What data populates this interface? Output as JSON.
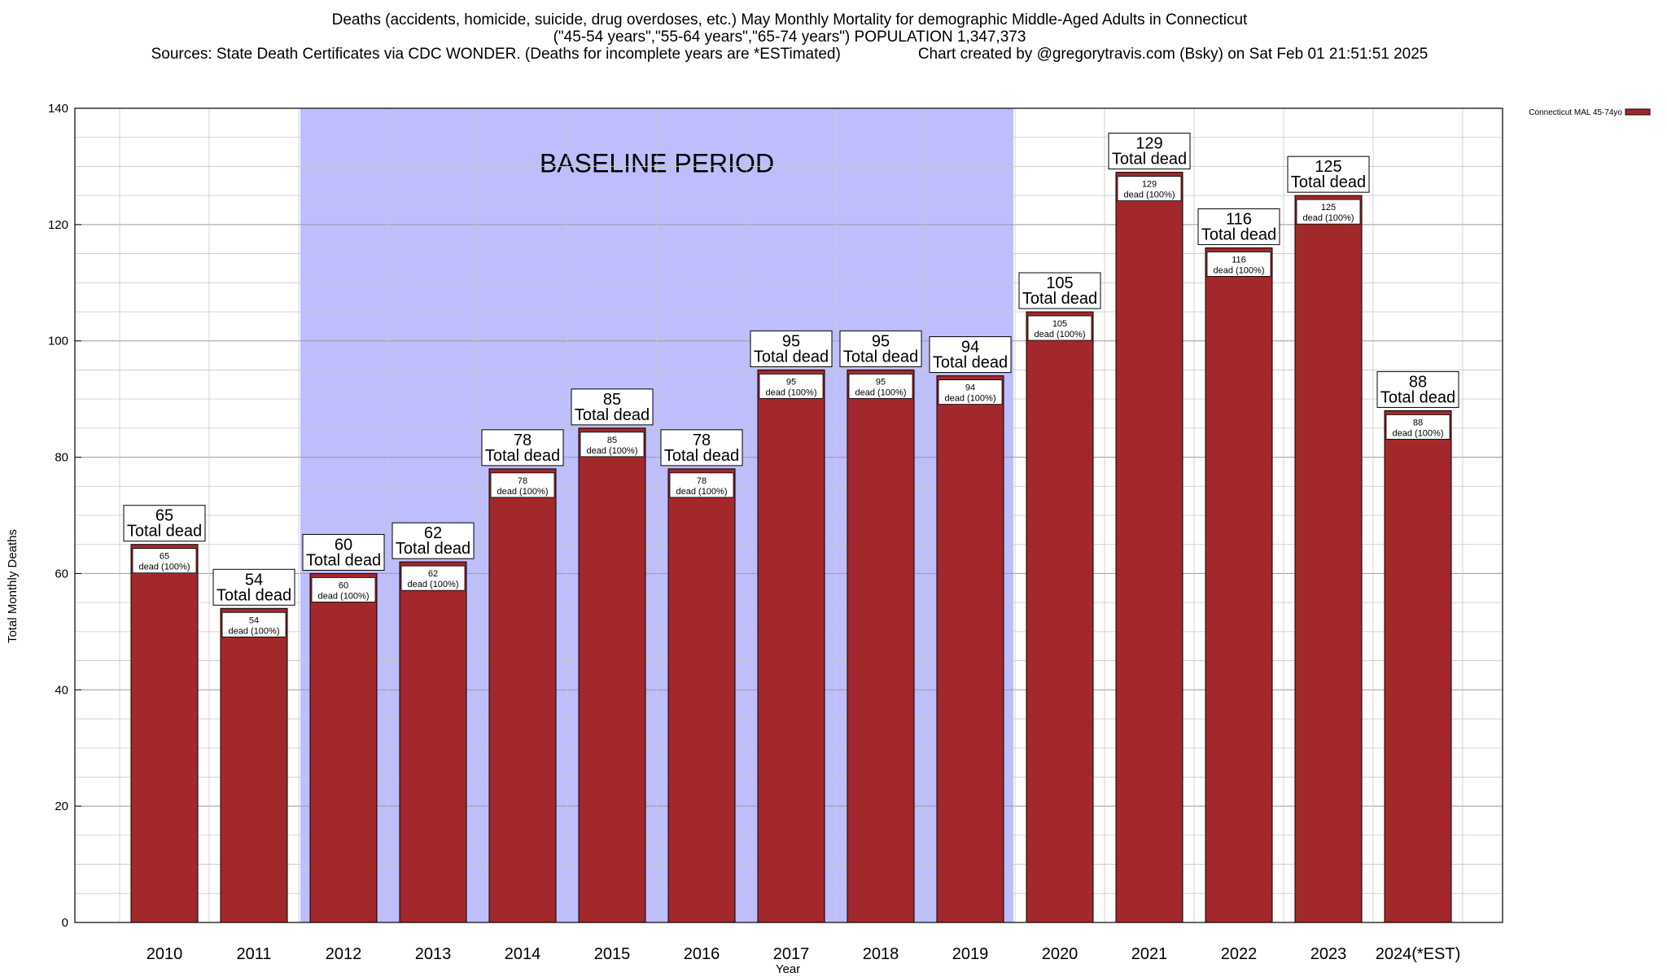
{
  "header": {
    "title_line1": "Deaths (accidents, homicide, suicide, drug overdoses, etc.) May Monthly Mortality for demographic Middle-Aged Adults in Connecticut",
    "title_line2": "(\"45-54 years\",\"55-64 years\",\"65-74 years\") POPULATION 1,347,373",
    "sources": "Sources: State Death Certificates via CDC WONDER. (Deaths for incomplete years are *ESTimated)",
    "credit": "Chart created by @gregorytravis.com (Bsky) on Sat Feb 01 21:51:51 2025"
  },
  "colors": {
    "bar_fill": "#a3282b",
    "bar_stroke": "#000000",
    "baseline_band": "#bebefd",
    "grid": "#c8c8c8"
  },
  "chart_data": {
    "type": "bar",
    "xlabel": "Year",
    "ylabel": "Total Monthly Deaths",
    "ylim": [
      0,
      140
    ],
    "yticks": [
      0,
      20,
      40,
      60,
      80,
      100,
      120,
      140
    ],
    "grid": true,
    "legend_position": "top-right",
    "categories": [
      "2010",
      "2011",
      "2012",
      "2013",
      "2014",
      "2015",
      "2016",
      "2017",
      "2018",
      "2019",
      "2020",
      "2021",
      "2022",
      "2023",
      "2024(*EST)"
    ],
    "series": [
      {
        "name": "Connecticut MAL 45-74yo",
        "values": [
          65,
          54,
          60,
          62,
          78,
          85,
          78,
          95,
          95,
          94,
          105,
          129,
          116,
          125,
          88
        ]
      }
    ],
    "total_label_suffix": "Total dead",
    "inner_label_suffix": "dead (100%)",
    "baseline_band": {
      "label": "BASELINE PERIOD",
      "start_category": "2012",
      "end_category": "2019"
    }
  }
}
